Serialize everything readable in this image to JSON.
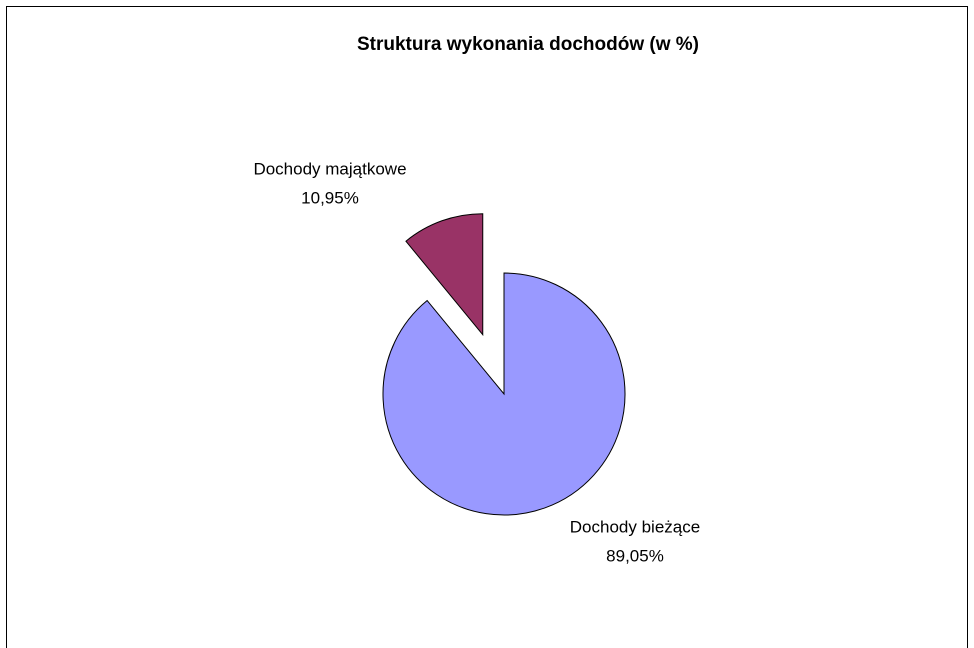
{
  "chart_data": {
    "type": "pie",
    "title": "Struktura wykonania dochodów (w %)",
    "categories": [
      "Dochody bieżące",
      "Dochody majątkowe"
    ],
    "values": [
      89.05,
      10.95
    ],
    "value_labels": [
      "89,05%",
      "10,95%"
    ],
    "colors": [
      "#9999ff",
      "#993366"
    ]
  }
}
